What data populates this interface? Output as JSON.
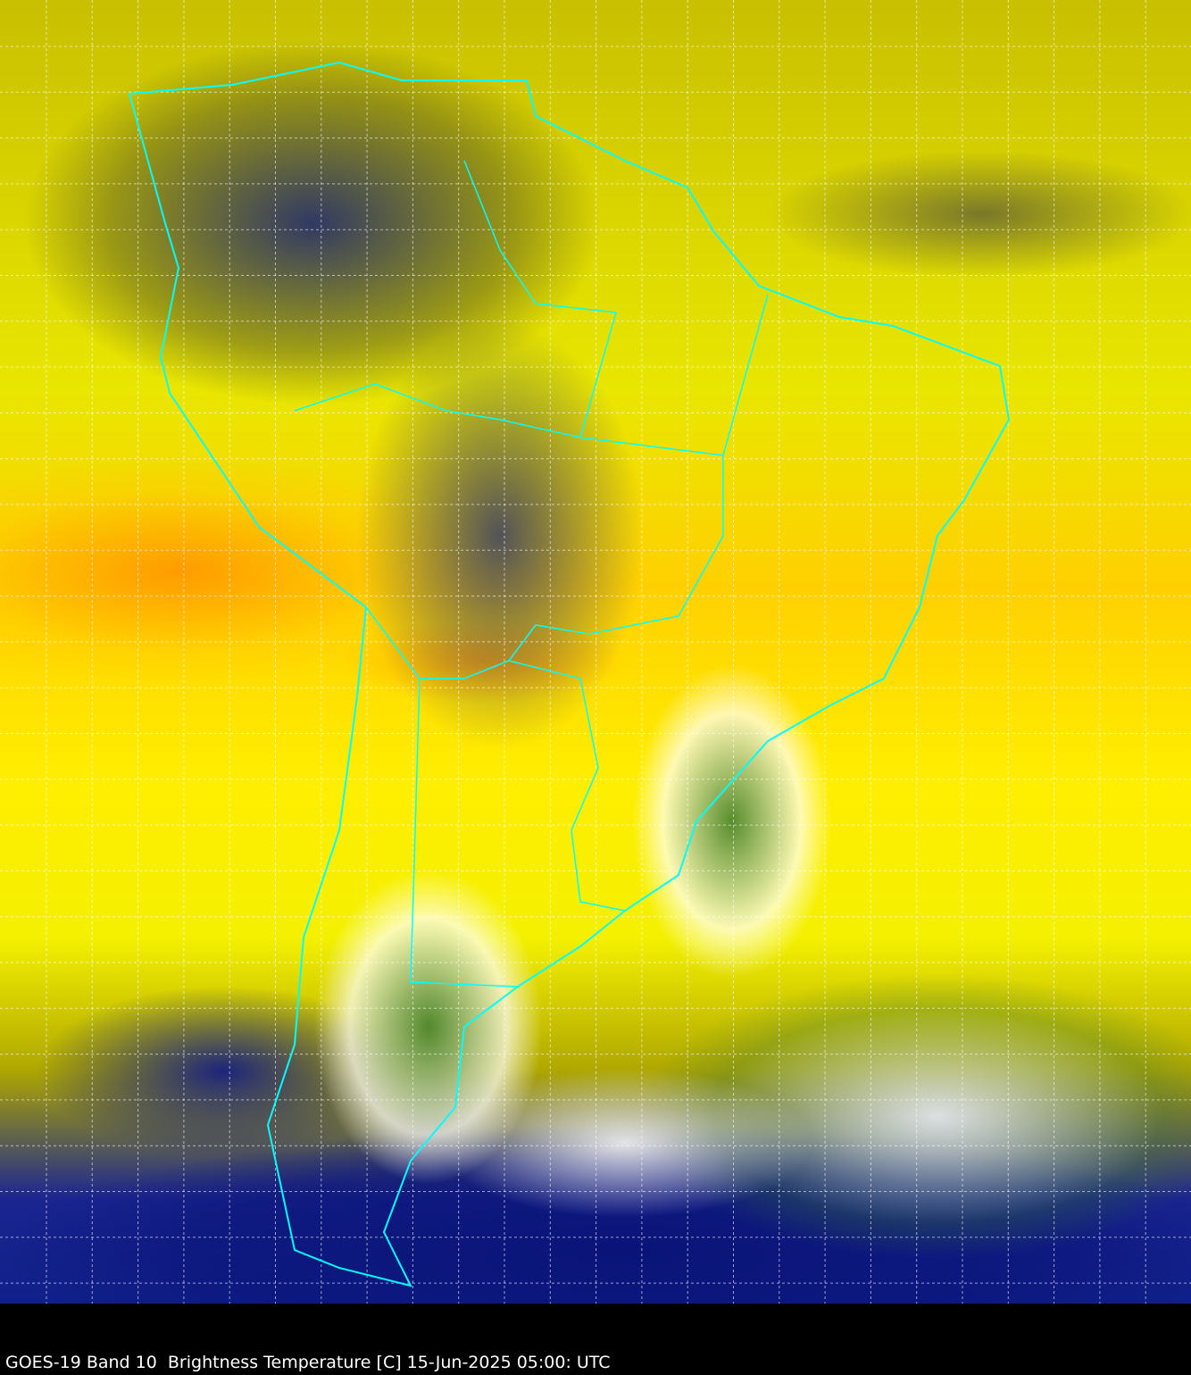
{
  "caption": "GOES-19 Band 10  Brightness Temperature [C] 15-Jun-2025 05:00: UTC",
  "colors": {
    "boundaries": "#00ffff",
    "grid": "#ffffff",
    "background": "#000000"
  }
}
